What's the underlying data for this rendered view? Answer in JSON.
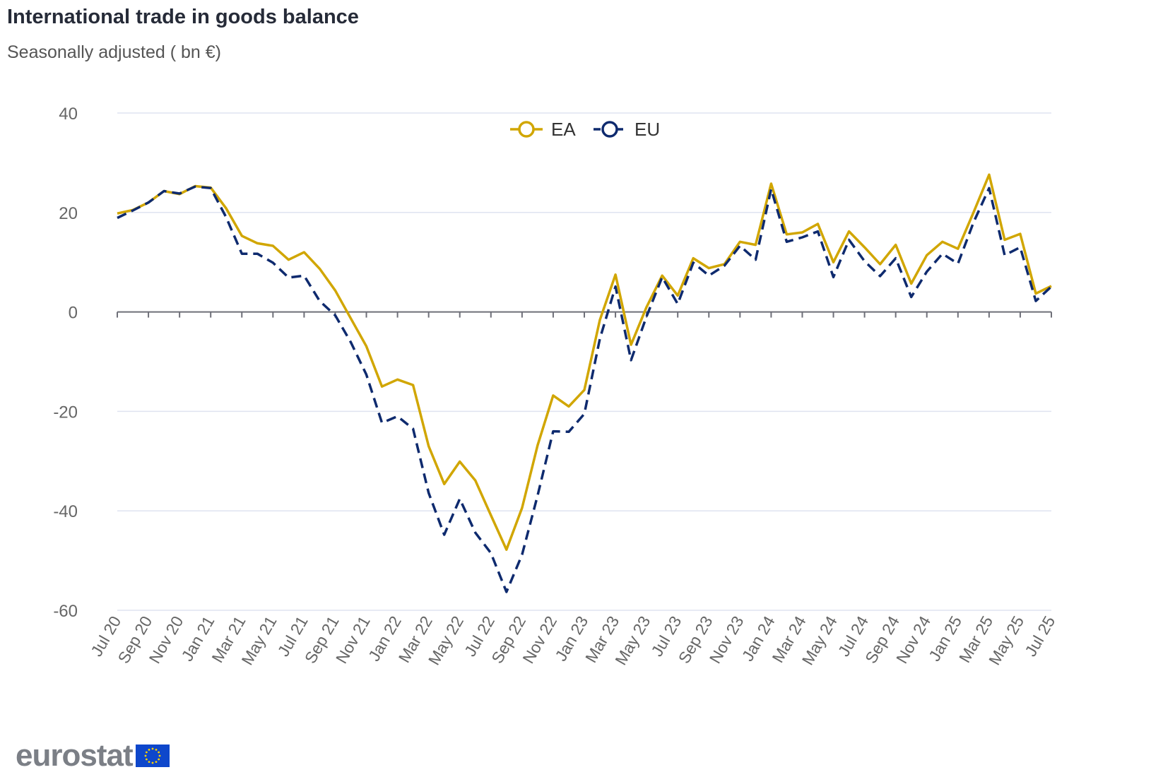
{
  "chart_data": {
    "type": "line",
    "title": "International trade in goods balance",
    "subtitle": "Seasonally adjusted ( bn €)",
    "xlabel": "",
    "ylabel": "",
    "ylim": [
      -60,
      40
    ],
    "yticks": [
      40,
      20,
      0,
      -20,
      -40,
      -60
    ],
    "grid": true,
    "legend_placement": "top-center",
    "x_tick_labels": [
      "Jul 20",
      "Sep 20",
      "Nov 20",
      "Jan 21",
      "Mar 21",
      "May 21",
      "Jul 21",
      "Sep 21",
      "Nov 21",
      "Jan 22",
      "Mar 22",
      "May 22",
      "Jul 22",
      "Sep 22",
      "Nov 22",
      "Jan 23",
      "Mar 23",
      "May 23",
      "Jul 23",
      "Sep 23",
      "Nov 23",
      "Jan 24",
      "Mar 24",
      "May 24",
      "Jul 24",
      "Sep 24",
      "Nov 24",
      "Jan 25",
      "Mar 25",
      "May 25",
      "Jul 25"
    ],
    "x_start": "Jul 20",
    "x_end": "Jul 25",
    "series": [
      {
        "name": "EA",
        "color": "#d1a600",
        "style": "solid",
        "values": [
          19.8,
          20.5,
          22,
          24.3,
          23.7,
          25.3,
          25.0,
          20.8,
          15.3,
          13.8,
          13.3,
          10.5,
          12,
          8.7,
          4.3,
          -1.3,
          -6.9,
          -15,
          -13.6,
          -14.7,
          -27,
          -34.6,
          -30.1,
          -33.9,
          -40.9,
          -47.8,
          -39.4,
          -26.8,
          -16.8,
          -19,
          -15.7,
          -1.6,
          7.5,
          -6.6,
          1,
          7.3,
          3.3,
          10.8,
          8.8,
          9.6,
          14.1,
          13.5,
          25.8,
          15.6,
          16,
          17.7,
          10,
          16.2,
          13,
          9.6,
          13.5,
          5.7,
          11.4,
          14.1,
          12.7,
          20,
          27.6,
          14.5,
          15.7,
          3.7,
          5.2
        ]
      },
      {
        "name": "EU",
        "color": "#0e2a6e",
        "style": "dashed",
        "values": [
          18.9,
          20.4,
          22,
          24.3,
          23.8,
          25.2,
          24.9,
          19,
          11.7,
          11.7,
          9.9,
          6.9,
          7.3,
          2.2,
          -0.7,
          -6.1,
          -12.6,
          -22.3,
          -21,
          -23.5,
          -36.4,
          -44.8,
          -37.6,
          -44.4,
          -48.5,
          -56.3,
          -48.8,
          -36.9,
          -24,
          -24.1,
          -20.5,
          -5.4,
          5.1,
          -9.7,
          -0.9,
          7,
          1.6,
          9.9,
          7.3,
          9.3,
          13.3,
          10.5,
          24.7,
          14.1,
          15,
          16.2,
          7,
          14.5,
          10.2,
          7.2,
          10.8,
          3,
          8.1,
          11.7,
          9.7,
          18,
          24.9,
          11.4,
          13,
          2.2,
          5.1
        ]
      }
    ]
  },
  "logo": {
    "text": "eurostat"
  }
}
